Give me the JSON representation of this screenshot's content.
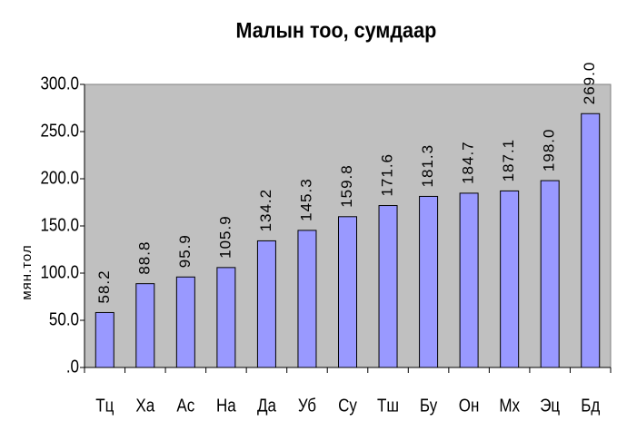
{
  "chart_data": {
    "type": "bar",
    "title": "Малын тоо, сумдаар",
    "y_label": "мян.тол",
    "categories": [
      "Тц",
      "Ха",
      "Ас",
      "На",
      "Да",
      "Уб",
      "Су",
      "Тш",
      "Бу",
      "Он",
      "Мх",
      "Эц",
      "Бд"
    ],
    "values": [
      58.2,
      88.8,
      95.9,
      105.9,
      134.2,
      145.3,
      159.8,
      171.6,
      181.3,
      184.7,
      187.1,
      198.0,
      269.0
    ],
    "value_labels": [
      "58.2",
      "88.8",
      "95.9",
      "105.9",
      "134.2",
      "145.3",
      "159.8",
      "171.6",
      "181.3",
      "184.7",
      "187.1",
      "198.0",
      "269.0"
    ],
    "color": "#9999ff",
    "ylim": [
      0,
      300
    ],
    "yticks": [
      {
        "value": 0,
        "label": ".0"
      },
      {
        "value": 50,
        "label": "50.0"
      },
      {
        "value": 100,
        "label": "100.0"
      },
      {
        "value": 150,
        "label": "150.0"
      },
      {
        "value": 200,
        "label": "200.0"
      },
      {
        "value": 250,
        "label": "250.0"
      },
      {
        "value": 300,
        "label": "300.0"
      }
    ],
    "grid": false
  }
}
